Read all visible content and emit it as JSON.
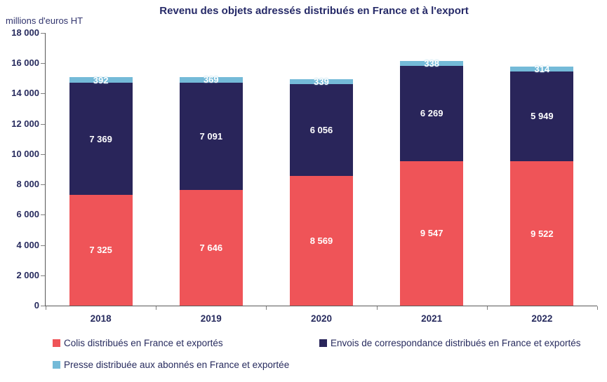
{
  "title": "Revenu des objets adressés distribués en France et à l'export",
  "unit_label": "millions d'euros HT",
  "chart_data": {
    "type": "bar",
    "stacked": true,
    "title": "Revenu des objets adressés distribués en France et à l'export",
    "ylabel": "millions d'euros HT",
    "xlabel": "",
    "categories": [
      "2018",
      "2019",
      "2020",
      "2021",
      "2022"
    ],
    "series": [
      {
        "name": "Colis distribués en France et exportés",
        "color": "#EF5458",
        "values": [
          7325,
          7646,
          8569,
          9547,
          9522
        ]
      },
      {
        "name": "Envois de correspondance distribués en France et exportés",
        "color": "#29255A",
        "values": [
          7369,
          7091,
          6056,
          6269,
          5949
        ]
      },
      {
        "name": "Presse distribuée aux abonnés en France et exportée",
        "color": "#74BAD8",
        "values": [
          392,
          369,
          339,
          338,
          314
        ]
      }
    ],
    "ylim": [
      0,
      18000
    ],
    "ytick_step": 2000,
    "ytick_labels": [
      "0",
      "2 000",
      "4 000",
      "6 000",
      "8 000",
      "10 000",
      "12 000",
      "14 000",
      "16 000",
      "18 000"
    ],
    "grid": false,
    "legend_position": "bottom",
    "data_labels": true
  },
  "colors": {
    "title_text": "#262a68",
    "axis_text": "#272b5e",
    "axis_line": "#595959",
    "colis": "#EF5458",
    "envois": "#29255A",
    "presse": "#74BAD8"
  }
}
